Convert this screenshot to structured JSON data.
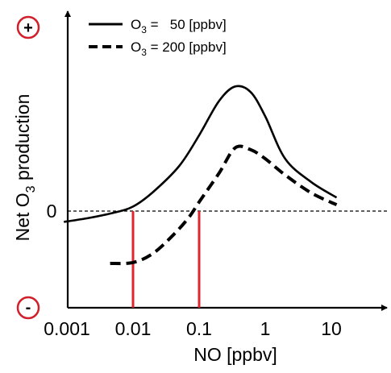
{
  "chart_data": {
    "type": "line",
    "xlabel": "NO [ppbv]",
    "ylabel": {
      "prefix": "Net O",
      "subscript": "3",
      "suffix": " production"
    },
    "x_scale": "log",
    "x_ticks": [
      {
        "value": 0.001,
        "label": "0.001"
      },
      {
        "value": 0.01,
        "label": "0.01"
      },
      {
        "value": 0.1,
        "label": "0.1"
      },
      {
        "value": 1,
        "label": "1"
      },
      {
        "value": 10,
        "label": "10"
      }
    ],
    "y_ticks": [
      {
        "value": 0,
        "label": "0"
      }
    ],
    "y_axis_markers": {
      "top": "+",
      "bottom": "-",
      "marker_color": "#d0202a"
    },
    "zero_line": {
      "y": 0,
      "style": "dashed"
    },
    "legend": [
      {
        "series": 0,
        "prefix": "O",
        "subscript": "3",
        "suffix": " =   50 [ppbv]"
      },
      {
        "series": 1,
        "prefix": "O",
        "subscript": "3",
        "suffix": " = 200 [ppbv]"
      }
    ],
    "series": [
      {
        "style": "solid",
        "x": [
          0.0009,
          0.002,
          0.005,
          0.01,
          0.02,
          0.05,
          0.1,
          0.2,
          0.35,
          0.6,
          1.0,
          2.0,
          5.0,
          12
        ],
        "y": [
          -0.12,
          -0.08,
          -0.02,
          0.05,
          0.21,
          0.5,
          0.84,
          1.22,
          1.38,
          1.32,
          1.05,
          0.58,
          0.32,
          0.15
        ]
      },
      {
        "style": "dashed",
        "x": [
          0.0045,
          0.01,
          0.02,
          0.04,
          0.07,
          0.1,
          0.2,
          0.35,
          0.6,
          1.0,
          2.0,
          5.0,
          12
        ],
        "y": [
          -0.58,
          -0.57,
          -0.47,
          -0.27,
          -0.07,
          0.1,
          0.42,
          0.7,
          0.68,
          0.58,
          0.4,
          0.2,
          0.07
        ]
      }
    ],
    "crossing_lines": {
      "color": "#e0262c",
      "x": [
        0.01,
        0.1
      ]
    }
  }
}
